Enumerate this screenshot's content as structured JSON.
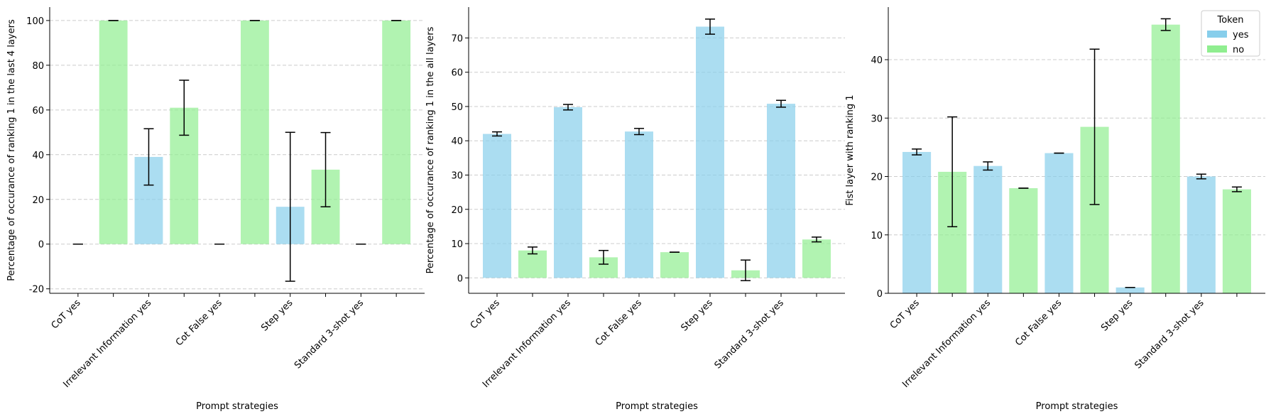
{
  "chart_data": [
    {
      "type": "bar",
      "y_label": "Percentage of occurance of ranking 1 in the last 4 layers",
      "x_label": "Prompt strategies",
      "categories": [
        "CoT yes",
        null,
        "Irrelevant Information yes",
        null,
        "Cot False yes",
        null,
        "Step yes",
        null,
        "Standard 3-shot yes",
        null
      ],
      "series": [
        {
          "name": "yes",
          "color": "#87ceeb",
          "values": [
            0,
            null,
            39,
            null,
            0,
            null,
            16.7,
            null,
            0,
            null
          ],
          "errors": [
            0,
            null,
            12.6,
            null,
            0,
            null,
            33.3,
            null,
            0,
            null
          ]
        },
        {
          "name": "no",
          "color": "#90ee90",
          "values": [
            null,
            100,
            null,
            61,
            null,
            100,
            null,
            33.3,
            null,
            100
          ],
          "errors": [
            null,
            0,
            null,
            12.3,
            null,
            0,
            null,
            16.6,
            null,
            0
          ]
        }
      ],
      "ylim": [
        -22,
        106
      ],
      "yticks": [
        -20,
        0,
        20,
        40,
        60,
        80,
        100
      ],
      "grid": true
    },
    {
      "type": "bar",
      "y_label": "Percentage of occurance of ranking 1 in the all layers",
      "x_label": "Prompt strategies",
      "categories": [
        "CoT yes",
        null,
        "Irrelevant Information yes",
        null,
        "Cot False yes",
        null,
        "Step yes",
        null,
        "Standard 3-shot yes",
        null
      ],
      "series": [
        {
          "name": "yes",
          "color": "#87ceeb",
          "values": [
            42,
            null,
            49.8,
            null,
            42.7,
            null,
            73.3,
            null,
            50.8,
            null
          ],
          "errors": [
            0.6,
            null,
            0.8,
            null,
            0.9,
            null,
            2.2,
            null,
            1,
            null
          ]
        },
        {
          "name": "no",
          "color": "#90ee90",
          "values": [
            null,
            8,
            null,
            6,
            null,
            7.5,
            null,
            2.2,
            null,
            11.2
          ],
          "errors": [
            null,
            1,
            null,
            2,
            null,
            0,
            null,
            3,
            null,
            0.7
          ]
        }
      ],
      "ylim": [
        -4.5,
        79
      ],
      "yticks": [
        0,
        10,
        20,
        30,
        40,
        50,
        60,
        70
      ],
      "grid": true
    },
    {
      "type": "bar",
      "y_label": "Fist layer with ranking 1",
      "x_label": "Prompt strategies",
      "categories": [
        "CoT yes",
        null,
        "Irrelevant Information yes",
        null,
        "Cot False yes",
        null,
        "Step yes",
        null,
        "Standard 3-shot yes",
        null
      ],
      "series": [
        {
          "name": "yes",
          "color": "#87ceeb",
          "values": [
            24.2,
            null,
            21.8,
            null,
            24,
            null,
            1,
            null,
            20,
            null
          ],
          "errors": [
            0.5,
            null,
            0.7,
            null,
            0,
            null,
            0,
            null,
            0.4,
            null
          ]
        },
        {
          "name": "no",
          "color": "#90ee90",
          "values": [
            null,
            20.8,
            null,
            18,
            null,
            28.5,
            null,
            46,
            null,
            17.8
          ],
          "errors": [
            null,
            9.4,
            null,
            0,
            null,
            13.3,
            null,
            1,
            null,
            0.4
          ]
        }
      ],
      "ylim": [
        0,
        49
      ],
      "yticks": [
        0,
        10,
        20,
        30,
        40
      ],
      "grid": true,
      "legend": "upper right",
      "legend_title": "Token"
    }
  ]
}
